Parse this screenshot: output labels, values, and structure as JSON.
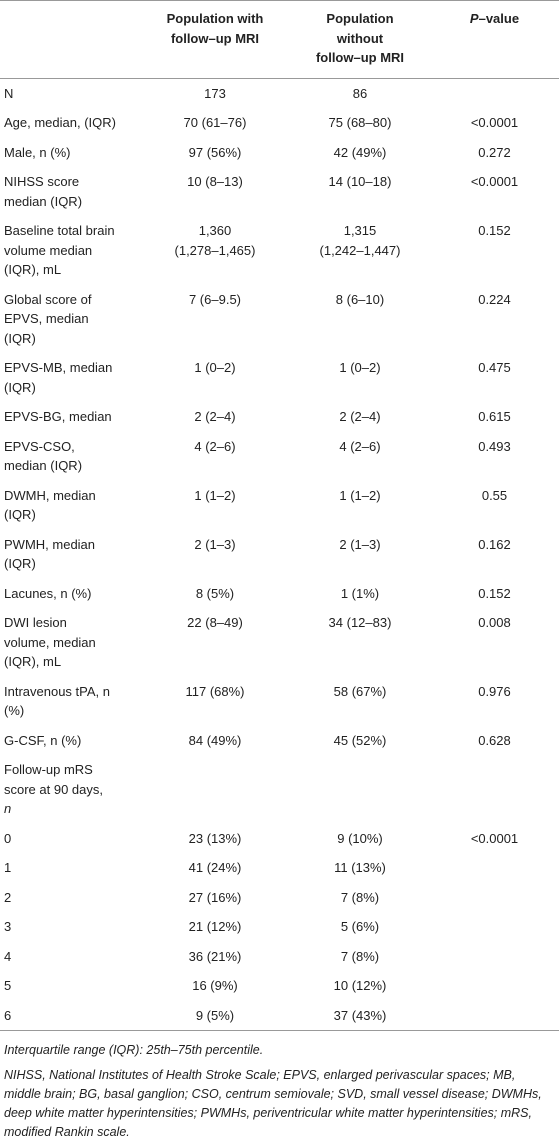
{
  "table": {
    "header": [
      null,
      [
        "Population with",
        "follow–up MRI"
      ],
      [
        "Population",
        "without",
        "follow–up MRI"
      ],
      [
        {
          "italic": "P",
          "text": "–value"
        }
      ]
    ],
    "rows": [
      [
        [
          "N"
        ],
        [
          "173"
        ],
        [
          "86"
        ],
        null
      ],
      [
        [
          "Age, median, (IQR)"
        ],
        [
          "70 (61–76)"
        ],
        [
          "75 (68–80)"
        ],
        [
          "<0.0001"
        ]
      ],
      [
        [
          "Male, n (%)"
        ],
        [
          "97 (56%)"
        ],
        [
          "42 (49%)"
        ],
        [
          "0.272"
        ]
      ],
      [
        [
          "NIHSS score",
          "median (IQR)"
        ],
        [
          "10 (8–13)"
        ],
        [
          "14 (10–18)"
        ],
        [
          "<0.0001"
        ]
      ],
      [
        [
          "Baseline total brain",
          "volume median",
          "(IQR), mL"
        ],
        [
          "1,360",
          "(1,278–1,465)"
        ],
        [
          "1,315",
          "(1,242–1,447)"
        ],
        [
          "0.152"
        ]
      ],
      [
        [
          "Global score of",
          "EPVS, median",
          "(IQR)"
        ],
        [
          "7 (6–9.5)"
        ],
        [
          "8 (6–10)"
        ],
        [
          "0.224"
        ]
      ],
      [
        [
          "EPVS-MB, median",
          "(IQR)"
        ],
        [
          "1 (0–2)"
        ],
        [
          "1 (0–2)"
        ],
        [
          "0.475"
        ]
      ],
      [
        [
          "EPVS-BG, median"
        ],
        [
          "2 (2–4)"
        ],
        [
          "2 (2–4)"
        ],
        [
          "0.615"
        ]
      ],
      [
        [
          "EPVS-CSO,",
          "median (IQR)"
        ],
        [
          "4 (2–6)"
        ],
        [
          "4 (2–6)"
        ],
        [
          "0.493"
        ]
      ],
      [
        [
          "DWMH, median",
          "(IQR)"
        ],
        [
          "1 (1–2)"
        ],
        [
          "1 (1–2)"
        ],
        [
          "0.55"
        ]
      ],
      [
        [
          "PWMH, median",
          "(IQR)"
        ],
        [
          "2 (1–3)"
        ],
        [
          "2 (1–3)"
        ],
        [
          "0.162"
        ]
      ],
      [
        [
          "Lacunes, n (%)"
        ],
        [
          "8 (5%)"
        ],
        [
          "1 (1%)"
        ],
        [
          "0.152"
        ]
      ],
      [
        [
          "DWI lesion",
          "volume, median",
          "(IQR), mL"
        ],
        [
          "22 (8–49)"
        ],
        [
          "34 (12–83)"
        ],
        [
          "0.008"
        ]
      ],
      [
        [
          "Intravenous tPA, n",
          "(%)"
        ],
        [
          "117 (68%)"
        ],
        [
          "58 (67%)"
        ],
        [
          "0.976"
        ]
      ],
      [
        [
          "G-CSF, n (%)"
        ],
        [
          "84 (49%)"
        ],
        [
          "45 (52%)"
        ],
        [
          "0.628"
        ]
      ],
      [
        [
          "Follow-up mRS",
          "score at 90 days,",
          {
            "italic": "n"
          }
        ],
        null,
        null,
        null
      ],
      [
        [
          "0"
        ],
        [
          "23 (13%)"
        ],
        [
          "9 (10%)"
        ],
        [
          "<0.0001"
        ]
      ],
      [
        [
          "1"
        ],
        [
          "41 (24%)"
        ],
        [
          "11 (13%)"
        ],
        null
      ],
      [
        [
          "2"
        ],
        [
          "27 (16%)"
        ],
        [
          "7 (8%)"
        ],
        null
      ],
      [
        [
          "3"
        ],
        [
          "21 (12%)"
        ],
        [
          "5 (6%)"
        ],
        null
      ],
      [
        [
          "4"
        ],
        [
          "36 (21%)"
        ],
        [
          "7 (8%)"
        ],
        null
      ],
      [
        [
          "5"
        ],
        [
          "16 (9%)"
        ],
        [
          "10 (12%)"
        ],
        null
      ],
      [
        [
          "6"
        ],
        [
          "9 (5%)"
        ],
        [
          "37 (43%)"
        ],
        null
      ]
    ]
  },
  "footnotes": [
    "Interquartile range (IQR): 25th–75th percentile.",
    "NIHSS, National Institutes of Health Stroke Scale; EPVS, enlarged perivascular spaces; MB, middle brain; BG, basal ganglion; CSO, centrum semiovale; SVD, small vessel disease; DWMHs, deep white matter hyperintensities; PWMHs, periventricular white matter hyperintensities; mRS, modified Rankin scale."
  ]
}
